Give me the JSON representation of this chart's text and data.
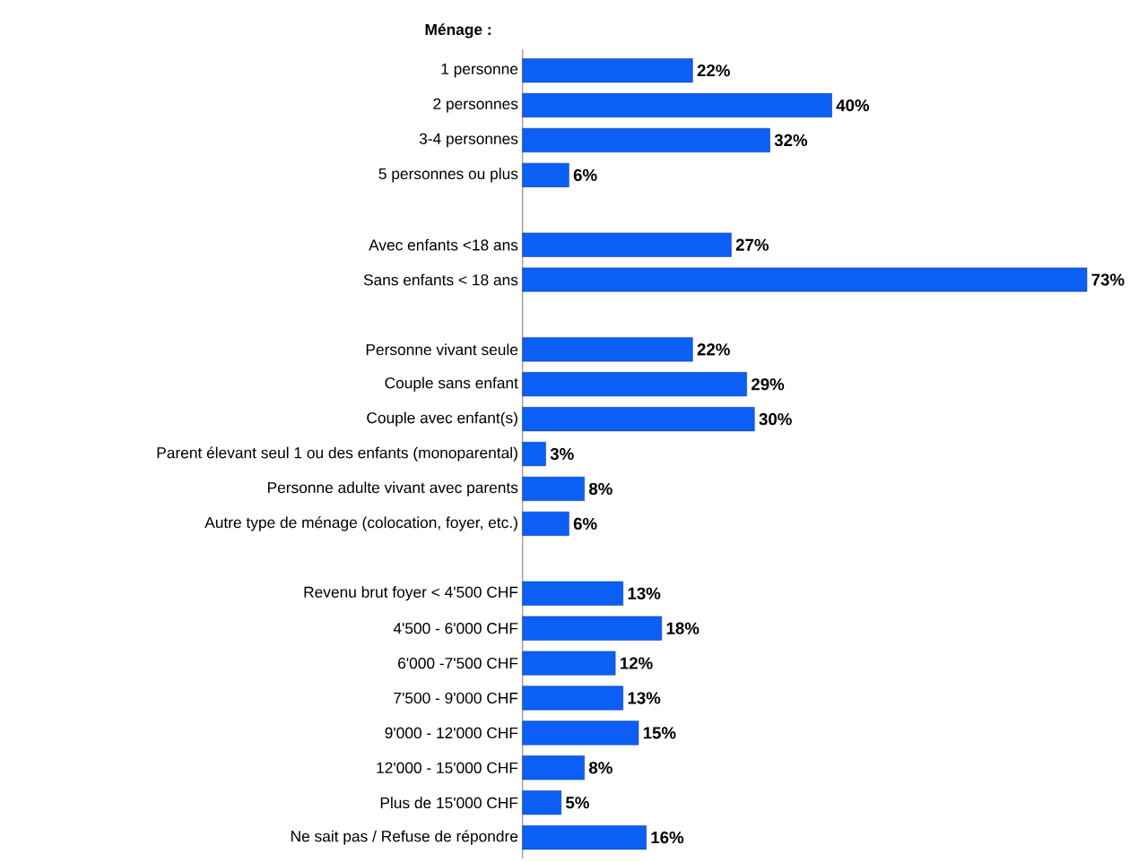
{
  "chart_data": {
    "type": "bar",
    "orientation": "horizontal",
    "title": "Ménage :",
    "color": "#0b5ff4",
    "categories": [
      "1 personne",
      "2 personnes",
      "3-4 personnes",
      "5 personnes ou plus",
      null,
      "Avec enfants <18 ans",
      "Sans enfants < 18 ans",
      null,
      "Personne vivant seule",
      "Couple sans enfant",
      "Couple avec enfant(s)",
      "Parent élevant seul 1 ou des enfants (monoparental)",
      "Personne adulte vivant avec parents",
      "Autre type de ménage (colocation, foyer, etc.)",
      null,
      "Revenu brut foyer  < 4'500 CHF",
      "4'500 - 6'000 CHF",
      "6'000 -7'500 CHF",
      "7'500 - 9'000 CHF",
      "9'000 - 12'000 CHF",
      "12'000 - 15'000 CHF",
      "Plus de 15'000 CHF",
      "Ne sait pas / Refuse de répondre"
    ],
    "values": [
      22,
      40,
      32,
      6,
      null,
      27,
      73,
      null,
      22,
      29,
      30,
      3,
      8,
      6,
      null,
      13,
      18,
      12,
      13,
      15,
      8,
      5,
      16
    ],
    "value_labels": [
      "22%",
      "40%",
      "32%",
      "6%",
      null,
      "27%",
      "73%",
      null,
      "22%",
      "29%",
      "30%",
      "3%",
      "8%",
      "6%",
      null,
      "13%",
      "18%",
      "12%",
      "13%",
      "15%",
      "8%",
      "5%",
      "16%"
    ],
    "tick_labels": "y"
  }
}
